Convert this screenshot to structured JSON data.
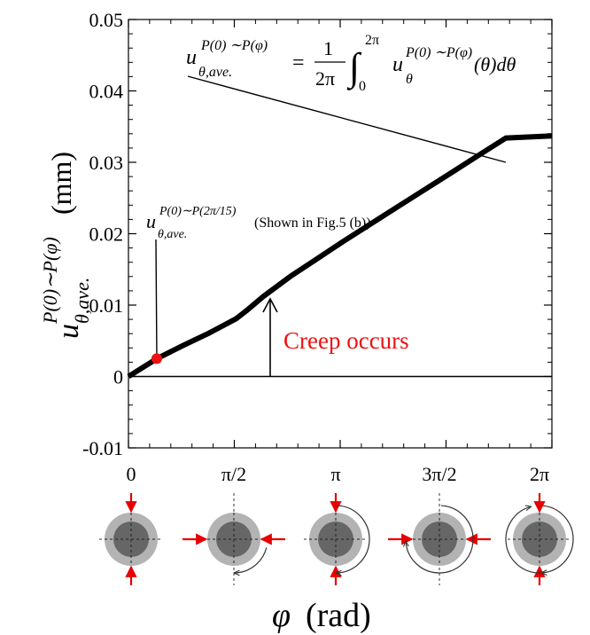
{
  "chart_data": {
    "type": "line",
    "xlabel_symbol": "φ",
    "xlabel_unit": "(rad)",
    "ylabel_symbol": "u",
    "ylabel_sup": "P(0)∼P(φ)",
    "ylabel_sub": "θ,ave.",
    "ylabel_unit": "(mm)",
    "xlim": [
      0,
      6.2832
    ],
    "ylim": [
      -0.01,
      0.05
    ],
    "yticks": [
      -0.01,
      0,
      0.01,
      0.02,
      0.03,
      0.04,
      0.05
    ],
    "ytick_labels": [
      "-0.01",
      "0",
      "0.01",
      "0.02",
      "0.03",
      "0.04",
      "0.05"
    ],
    "xticks": [
      0,
      1.5708,
      3.1416,
      4.7124,
      6.2832
    ],
    "xtick_labels": [
      "0",
      "π/2",
      "π",
      "3π/2",
      "2π"
    ],
    "grid": false,
    "series": [
      {
        "color": "#000000",
        "x": [
          0,
          0.42,
          0.8,
          1.2,
          1.6,
          1.75,
          2.0,
          2.4,
          2.8,
          3.2,
          3.6,
          4.0,
          4.4,
          4.8,
          5.2,
          5.6,
          6.2832
        ],
        "y": [
          0,
          0.0025,
          0.0043,
          0.0061,
          0.0081,
          0.0092,
          0.0112,
          0.014,
          0.0165,
          0.019,
          0.0214,
          0.0238,
          0.0262,
          0.0286,
          0.031,
          0.0334,
          0.0337
        ]
      }
    ],
    "baseline": {
      "y": 0,
      "color": "#000000"
    },
    "marker": {
      "x": 0.42,
      "y": 0.0025,
      "color": "#ee1111"
    },
    "annotations": {
      "formula": {
        "lhs_base": "u",
        "lhs_sup": "P(0) ∼P(φ)",
        "lhs_sub": "θ,ave.",
        "equals": "=",
        "frac_num": "1",
        "frac_den": "2π",
        "integral": "∫",
        "int_upper": "2π",
        "int_lower": "0",
        "rhs_base": "u",
        "rhs_sup": "P(0) ∼P(φ)",
        "rhs_sub": "θ",
        "rhs_tail": "(θ)dθ"
      },
      "point_label": {
        "base": "u",
        "sup": "P(0)∼P(2π/15)",
        "sub": "θ,ave.",
        "note": "(Shown in Fig.5 (b))"
      },
      "creep": {
        "text": "Creep occurs",
        "color": "#ee1111"
      }
    }
  }
}
